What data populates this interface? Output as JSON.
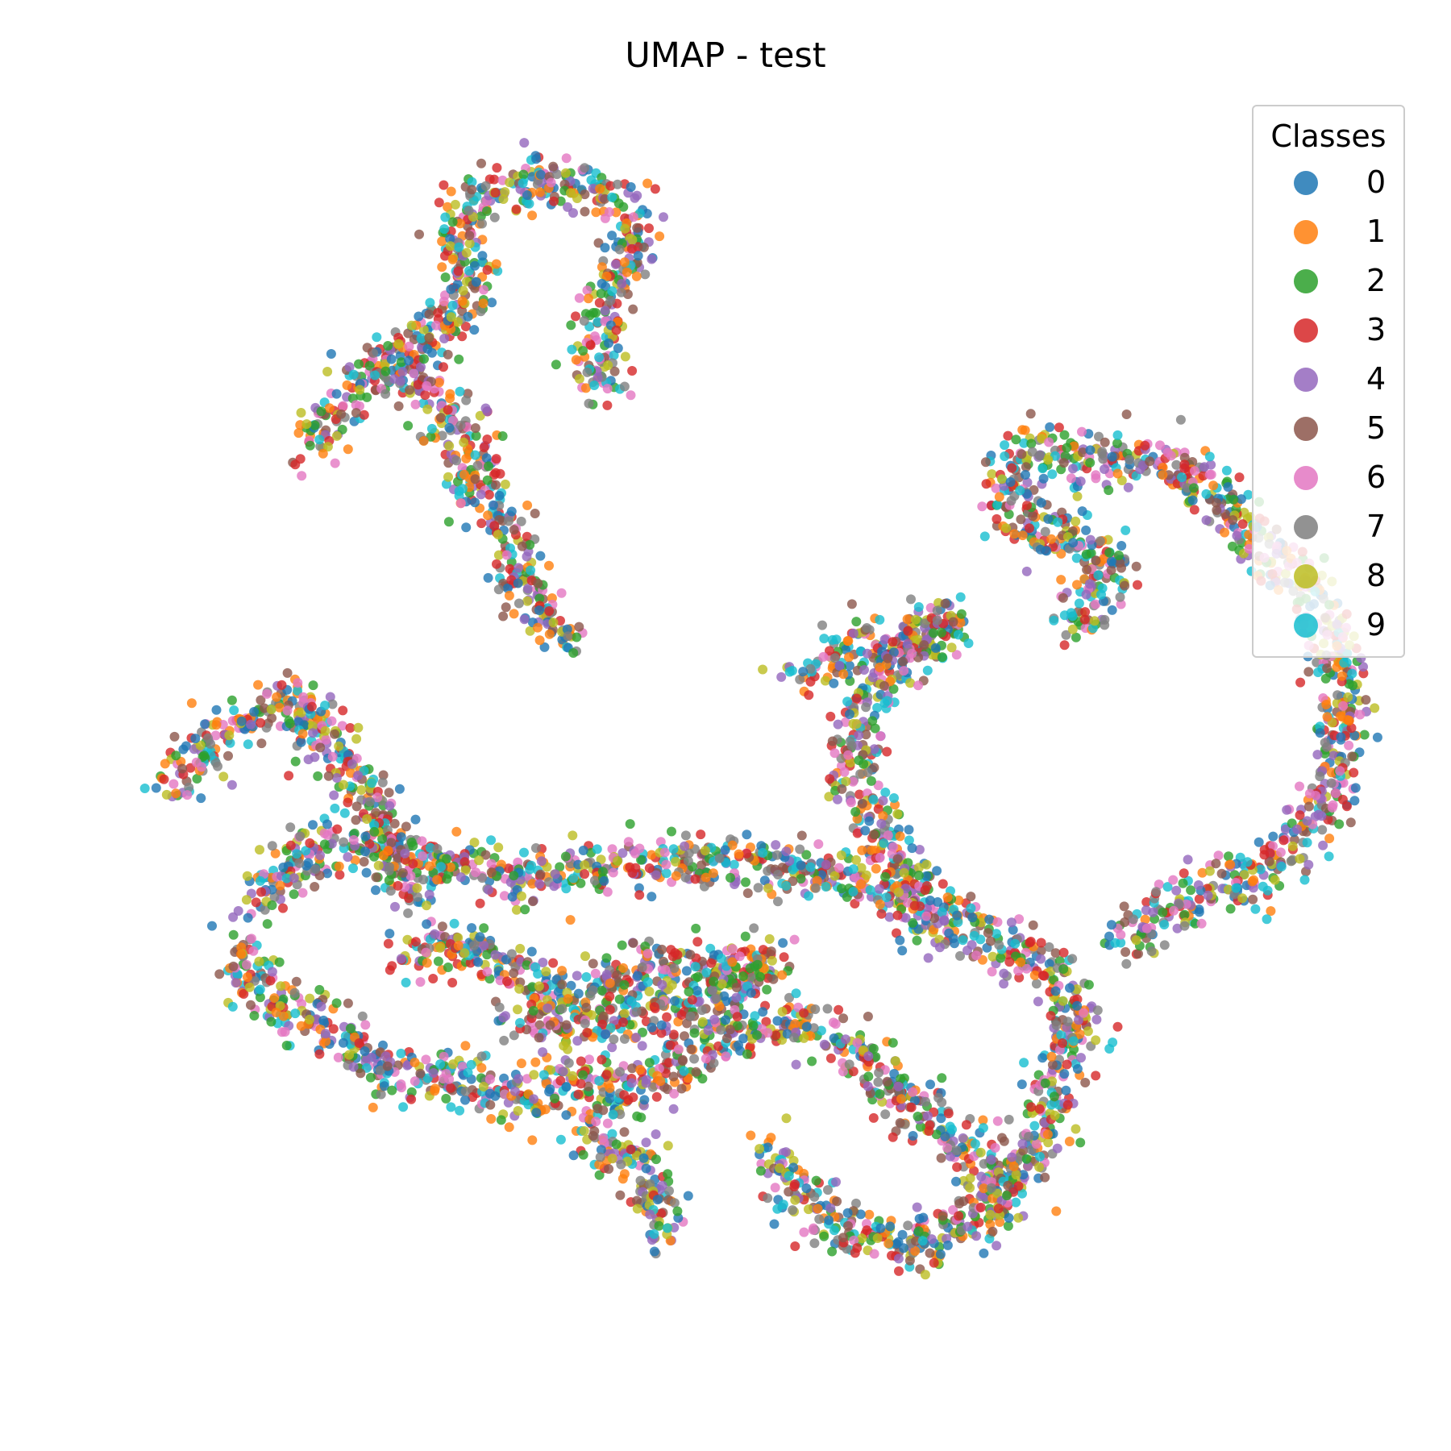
{
  "chart_data": {
    "type": "scatter",
    "title": "UMAP - test",
    "xlabel": "",
    "ylabel": "",
    "axes_visible": false,
    "grid": false,
    "legend": {
      "title": "Classes",
      "placement": "top-right",
      "entries": [
        {
          "label": "0",
          "color": "#1f77b4"
        },
        {
          "label": "1",
          "color": "#ff7f0e"
        },
        {
          "label": "2",
          "color": "#2ca02c"
        },
        {
          "label": "3",
          "color": "#d62728"
        },
        {
          "label": "4",
          "color": "#9467bd"
        },
        {
          "label": "5",
          "color": "#8c564b"
        },
        {
          "label": "6",
          "color": "#e377c2"
        },
        {
          "label": "7",
          "color": "#7f7f7f"
        },
        {
          "label": "8",
          "color": "#bcbd22"
        },
        {
          "label": "9",
          "color": "#17becf"
        }
      ]
    },
    "xlim": [
      0,
      100
    ],
    "ylim": [
      0,
      100
    ],
    "clusters": [
      {
        "region": "top-left loop",
        "path": [
          [
            24.0,
            80.4
          ],
          [
            26.5,
            82.2
          ],
          [
            29.6,
            84.2
          ],
          [
            30.8,
            87.2
          ],
          [
            29.2,
            90.8
          ],
          [
            31.9,
            93.8
          ],
          [
            37.0,
            95.0
          ],
          [
            41.4,
            93.5
          ],
          [
            43.0,
            90.0
          ],
          [
            41.0,
            86.0
          ],
          [
            40.4,
            82.0
          ],
          [
            40.9,
            78.1
          ]
        ]
      },
      {
        "region": "top-left arm",
        "path": [
          [
            18.0,
            73.7
          ],
          [
            20.3,
            77.0
          ],
          [
            23.6,
            80.0
          ],
          [
            26.3,
            79.2
          ],
          [
            28.6,
            76.7
          ],
          [
            30.7,
            73.6
          ]
        ]
      },
      {
        "region": "top-left stem",
        "path": [
          [
            29.7,
            74.1
          ],
          [
            31.1,
            70.6
          ],
          [
            32.8,
            67.3
          ],
          [
            34.2,
            64.0
          ],
          [
            36.3,
            60.7
          ],
          [
            38.0,
            58.1
          ]
        ]
      },
      {
        "region": "right hook",
        "path": [
          [
            76.8,
            59.3
          ],
          [
            78.2,
            62.0
          ],
          [
            80.1,
            64.8
          ],
          [
            77.5,
            66.2
          ],
          [
            74.5,
            66.7
          ],
          [
            72.2,
            68.2
          ],
          [
            71.2,
            71.0
          ],
          [
            73.6,
            73.3
          ],
          [
            77.1,
            72.6
          ],
          [
            82.0,
            72.8
          ],
          [
            86.4,
            71.3
          ],
          [
            90.0,
            67.0
          ],
          [
            94.8,
            62.7
          ],
          [
            97.1,
            57.3
          ],
          [
            97.4,
            52.2
          ],
          [
            96.4,
            47.0
          ],
          [
            94.5,
            43.2
          ],
          [
            90.5,
            40.0
          ],
          [
            85.8,
            38.4
          ],
          [
            79.9,
            35.0
          ]
        ]
      },
      {
        "region": "middle stalk",
        "path": [
          [
            56.0,
            55.8
          ],
          [
            59.8,
            58.0
          ],
          [
            63.8,
            58.6
          ],
          [
            67.5,
            60.7
          ],
          [
            60.2,
            53.2
          ],
          [
            59.6,
            50.2
          ],
          [
            60.5,
            46.8
          ],
          [
            62.5,
            43.1
          ],
          [
            64.0,
            40.0
          ],
          [
            65.0,
            36.0
          ]
        ]
      },
      {
        "region": "left head",
        "path": [
          [
            7.3,
            46.9
          ],
          [
            10.0,
            50.0
          ],
          [
            13.1,
            52.1
          ],
          [
            16.2,
            53.8
          ],
          [
            19.3,
            52.1
          ],
          [
            20.6,
            48.5
          ],
          [
            23.0,
            46.4
          ],
          [
            24.4,
            43.1
          ],
          [
            25.4,
            40.3
          ],
          [
            27.0,
            38.0
          ]
        ]
      },
      {
        "region": "main body",
        "path": [
          [
            12.1,
            34.8
          ],
          [
            15.8,
            29.7
          ],
          [
            20.0,
            28.0
          ],
          [
            24.0,
            24.5
          ],
          [
            28.8,
            24.3
          ],
          [
            34.8,
            22.6
          ],
          [
            38.9,
            24.2
          ],
          [
            43.2,
            22.9
          ],
          [
            46.3,
            25.6
          ],
          [
            50.2,
            27.7
          ],
          [
            55.9,
            28.5
          ],
          [
            60.4,
            26.0
          ],
          [
            63.9,
            22.6
          ],
          [
            67.9,
            18.9
          ],
          [
            71.8,
            15.8
          ],
          [
            74.0,
            19.8
          ],
          [
            75.4,
            23.9
          ],
          [
            77.2,
            28.3
          ],
          [
            74.2,
            33.0
          ],
          [
            69.4,
            35.5
          ],
          [
            63.8,
            39.0
          ],
          [
            56.9,
            40.4
          ],
          [
            50.1,
            41.3
          ],
          [
            42.4,
            40.7
          ],
          [
            35.7,
            40.0
          ],
          [
            29.2,
            40.9
          ],
          [
            22.1,
            43.0
          ],
          [
            16.4,
            41.4
          ],
          [
            13.9,
            37.6
          ]
        ]
      },
      {
        "region": "inner ring",
        "path": [
          [
            25.0,
            33.0
          ],
          [
            29.5,
            34.8
          ],
          [
            34.0,
            32.0
          ],
          [
            38.0,
            30.5
          ],
          [
            42.0,
            32.5
          ],
          [
            46.0,
            33.5
          ],
          [
            50.0,
            32.0
          ],
          [
            53.5,
            33.5
          ],
          [
            50.0,
            30.5
          ],
          [
            44.0,
            29.5
          ],
          [
            39.0,
            28.0
          ],
          [
            34.0,
            28.5
          ]
        ]
      },
      {
        "region": "bottom tail",
        "path": [
          [
            39.5,
            22.0
          ],
          [
            40.5,
            19.5
          ],
          [
            42.5,
            18.0
          ],
          [
            44.2,
            16.0
          ],
          [
            45.0,
            13.5
          ],
          [
            45.3,
            11.5
          ]
        ]
      },
      {
        "region": "bottom right lobe",
        "path": [
          [
            53.5,
            18.5
          ],
          [
            55.5,
            15.0
          ],
          [
            57.5,
            13.5
          ],
          [
            60.0,
            12.0
          ],
          [
            62.7,
            11.2
          ],
          [
            64.5,
            11.0
          ],
          [
            66.5,
            12.0
          ],
          [
            68.8,
            12.5
          ],
          [
            70.2,
            14.0
          ],
          [
            71.5,
            16.0
          ]
        ]
      }
    ]
  }
}
